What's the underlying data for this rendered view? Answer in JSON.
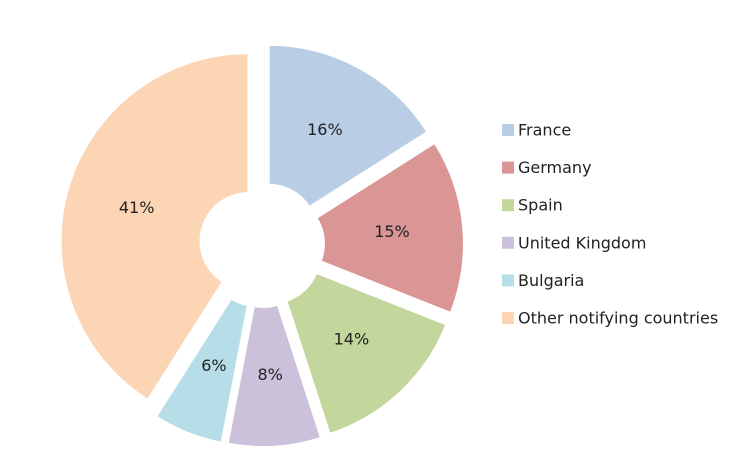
{
  "chart_data": {
    "type": "pie",
    "series": [
      {
        "name": "France",
        "color": "#b9cde5",
        "values": [
          16
        ],
        "value_labels": [
          "16%"
        ]
      },
      {
        "name": "Germany",
        "color": "#d99694",
        "values": [
          15
        ],
        "value_labels": [
          "15%"
        ]
      },
      {
        "name": "Spain",
        "color": "#c3d69b",
        "values": [
          14
        ],
        "value_labels": [
          "14%"
        ]
      },
      {
        "name": "United Kingdom",
        "color": "#ccc1da",
        "values": [
          8
        ],
        "value_labels": [
          "8%"
        ]
      },
      {
        "name": "Bulgaria",
        "color": "#b7dee8",
        "values": [
          6
        ],
        "value_labels": [
          "6%"
        ]
      },
      {
        "name": "Other notifying countries",
        "color": "#fcd5b5",
        "values": [
          41
        ],
        "value_labels": [
          "41%"
        ]
      }
    ],
    "legend": "right"
  }
}
